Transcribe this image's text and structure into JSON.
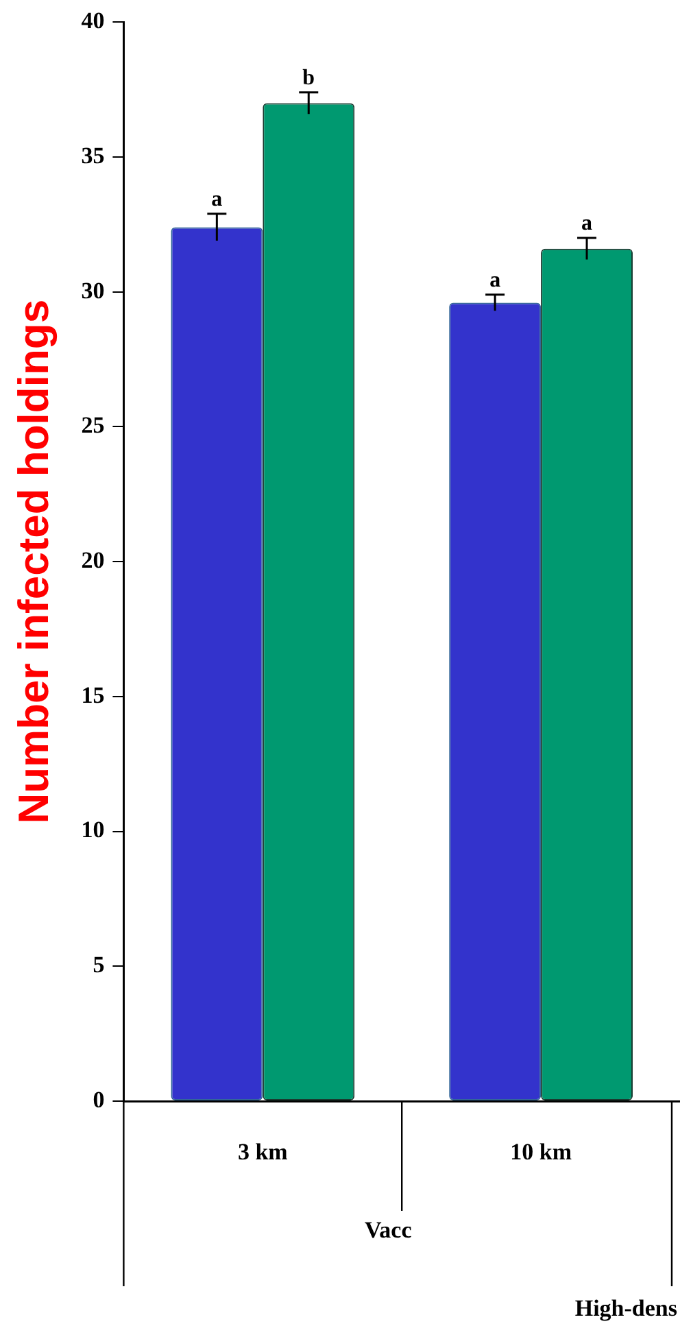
{
  "chart_data": {
    "type": "bar",
    "ylabel": "Number infected holdings",
    "categories": [
      "3 km",
      "10 km"
    ],
    "series": [
      {
        "color": "#3333cc",
        "values": [
          32.4,
          29.6
        ],
        "errors": [
          0.5,
          0.3
        ]
      },
      {
        "color": "#009970",
        "values": [
          37.0,
          31.6
        ],
        "errors": [
          0.4,
          0.4
        ]
      }
    ],
    "ylim": [
      0,
      40
    ],
    "yticks": [
      0,
      5,
      10,
      15,
      20,
      25,
      30,
      35,
      40
    ],
    "grid": false,
    "legend": false,
    "annotations": [
      {
        "text": "a",
        "x": "3 km",
        "y": 32.4
      },
      {
        "text": "b",
        "x": "3 km",
        "y": 37.0
      },
      {
        "text": "a",
        "x": "10 km",
        "y": 29.6
      },
      {
        "text": "a",
        "x": "10 km",
        "y": 31.6
      },
      "Vacc",
      "High-dens"
    ]
  }
}
